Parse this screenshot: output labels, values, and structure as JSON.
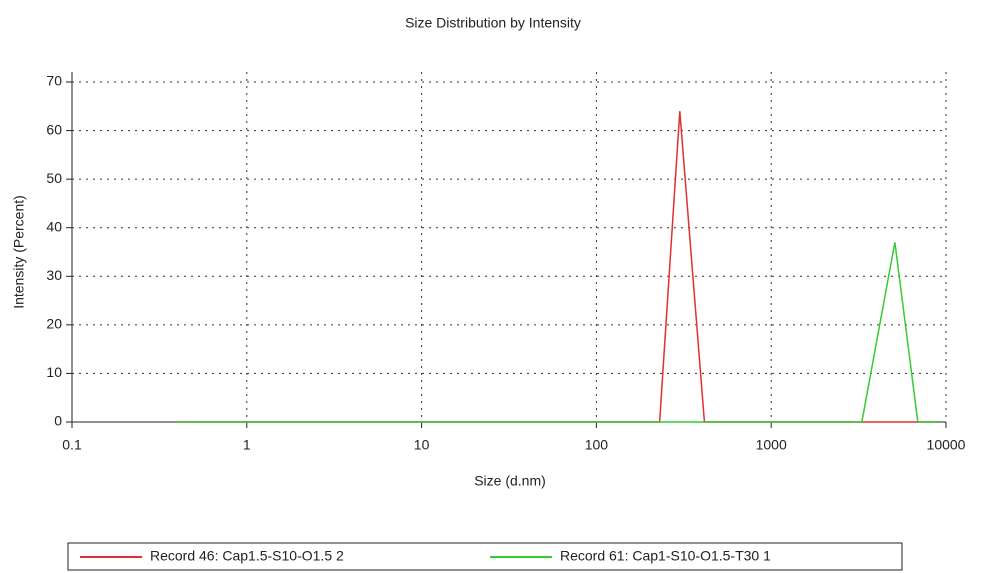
{
  "chart_data": {
    "type": "line",
    "title": "Size Distribution by Intensity",
    "x_label": "Size (d.nm)",
    "y_label": "Intensity (Percent)",
    "x": [
      0.4,
      1,
      10,
      100,
      230,
      300,
      415,
      1000,
      3300,
      5100,
      6900,
      9000
    ],
    "series": [
      {
        "name": "Record 46: Cap1.5-S10-O1.5 2",
        "color": "#e03030",
        "values": [
          0,
          0,
          0,
          0,
          0,
          64,
          0,
          0,
          0,
          0,
          0,
          0
        ]
      },
      {
        "name": "Record 61: Cap1-S10-O1.5-T30 1",
        "color": "#33cc33",
        "values": [
          0,
          0,
          0,
          0,
          0,
          0,
          0,
          0,
          0,
          37,
          0,
          0
        ]
      }
    ],
    "xlim": [
      0.1,
      10000
    ],
    "xticks": [
      0.1,
      1,
      10,
      100,
      1000,
      10000
    ],
    "xscale": "log",
    "ylim": [
      0,
      70
    ],
    "yticks": [
      0,
      10,
      20,
      30,
      40,
      50,
      60,
      70
    ],
    "grid": true,
    "legend": "bottom"
  }
}
